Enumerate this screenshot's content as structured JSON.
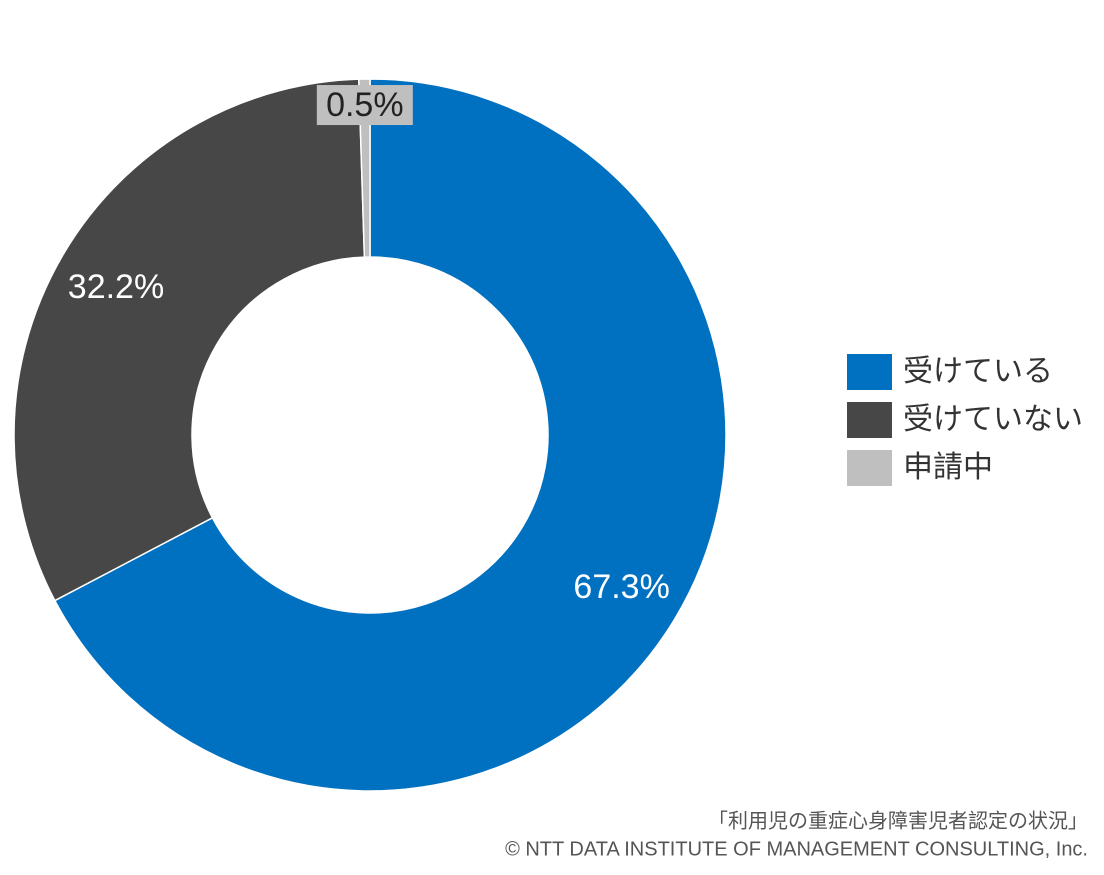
{
  "chart_data": {
    "type": "donut",
    "categories": [
      "受けている",
      "受けていない",
      "申請中"
    ],
    "values": [
      67.3,
      32.2,
      0.5
    ],
    "value_labels": [
      "67.3%",
      "32.2%",
      "0.5%"
    ],
    "colors": [
      "#0070c0",
      "#474747",
      "#bfbfbf"
    ],
    "legend": "right",
    "notes": [
      "「利用児の重症心身障害児者認定の状況」",
      "© NTT DATA INSTITUTE OF MANAGEMENT CONSULTING, Inc."
    ]
  }
}
